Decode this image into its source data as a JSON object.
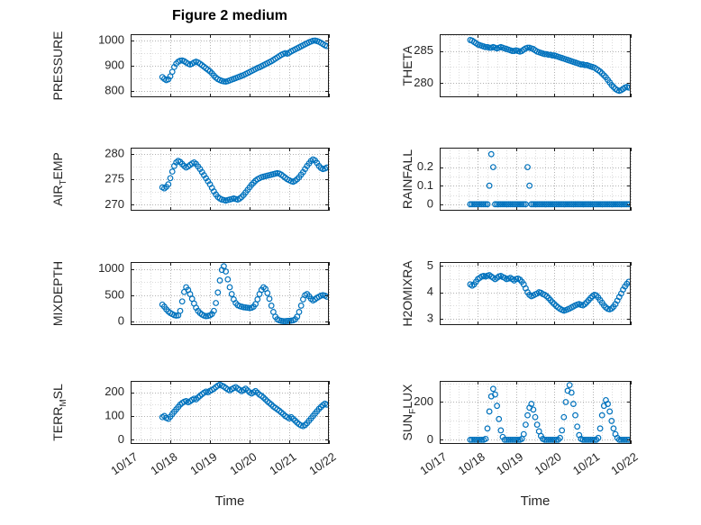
{
  "title": "Figure 2 medium",
  "xlabel": "Time",
  "chart_data": {
    "type": "scatter",
    "marker": "open-circle",
    "marker_color": "#0072BD",
    "grid": "on-dotted-with-minor",
    "xlim": [
      0,
      5
    ],
    "xticks": [
      0,
      1,
      2,
      3,
      4,
      5
    ],
    "xtick_labels": [
      "10/17",
      "10/18",
      "10/19",
      "10/20",
      "10/21",
      "10/22"
    ],
    "x": [
      0.8,
      0.85,
      0.9,
      0.95,
      1,
      1.05,
      1.1,
      1.15,
      1.2,
      1.25,
      1.3,
      1.35,
      1.4,
      1.45,
      1.5,
      1.55,
      1.6,
      1.65,
      1.7,
      1.75,
      1.8,
      1.85,
      1.9,
      1.95,
      2,
      2.05,
      2.1,
      2.15,
      2.2,
      2.25,
      2.3,
      2.35,
      2.4,
      2.45,
      2.5,
      2.55,
      2.6,
      2.65,
      2.7,
      2.75,
      2.8,
      2.85,
      2.9,
      2.95,
      3,
      3.05,
      3.1,
      3.15,
      3.2,
      3.25,
      3.3,
      3.35,
      3.4,
      3.45,
      3.5,
      3.55,
      3.6,
      3.65,
      3.7,
      3.75,
      3.8,
      3.85,
      3.9,
      3.95,
      4,
      4.05,
      4.1,
      4.15,
      4.2,
      4.25,
      4.3,
      4.35,
      4.4,
      4.45,
      4.5,
      4.55,
      4.6,
      4.65,
      4.7,
      4.75,
      4.8,
      4.85,
      4.9,
      4.95
    ],
    "panels": [
      {
        "name": "PRESSURE",
        "ylabel": {
          "pre": "PRESSURE",
          "sub": "",
          "post": ""
        },
        "ylim": [
          775,
          1025
        ],
        "yticks": [
          800,
          900,
          1000
        ],
        "y": [
          855,
          848,
          843,
          846,
          858,
          876,
          895,
          908,
          916,
          920,
          921,
          918,
          913,
          908,
          905,
          908,
          913,
          916,
          913,
          908,
          902,
          896,
          890,
          884,
          878,
          870,
          861,
          853,
          847,
          843,
          840,
          838,
          837,
          839,
          842,
          845,
          848,
          851,
          854,
          857,
          860,
          863,
          867,
          871,
          875,
          879,
          883,
          887,
          891,
          894,
          898,
          902,
          906,
          910,
          914,
          918,
          923,
          928,
          933,
          938,
          943,
          947,
          950,
          948,
          952,
          957,
          961,
          965,
          969,
          973,
          977,
          981,
          985,
          989,
          993,
          996,
          999,
          1000,
          998,
          995,
          991,
          986,
          981,
          978
        ]
      },
      {
        "name": "AIR_TEMP",
        "ylabel": {
          "pre": "AIR",
          "sub": "T",
          "post": "EMP"
        },
        "ylim": [
          268.8,
          281.2
        ],
        "yticks": [
          270,
          275,
          280
        ],
        "y": [
          273.4,
          273.2,
          273.5,
          274.0,
          275.2,
          276.5,
          277.6,
          278.3,
          278.6,
          278.4,
          278.0,
          277.6,
          277.3,
          277.5,
          277.8,
          278.1,
          278.3,
          278.0,
          277.5,
          277.0,
          276.4,
          275.8,
          275.2,
          274.6,
          274.0,
          273.3,
          272.6,
          272.0,
          271.5,
          271.2,
          271.0,
          270.9,
          270.8,
          270.9,
          271.0,
          271.1,
          271.2,
          271.1,
          271.0,
          271.2,
          271.5,
          271.9,
          272.4,
          272.9,
          273.4,
          273.9,
          274.3,
          274.7,
          275.0,
          275.2,
          275.4,
          275.5,
          275.6,
          275.7,
          275.8,
          275.9,
          276.0,
          276.1,
          276.2,
          276.1,
          275.9,
          275.6,
          275.3,
          275.0,
          274.8,
          274.6,
          274.5,
          274.7,
          275.0,
          275.4,
          275.9,
          276.4,
          277.0,
          277.6,
          278.1,
          278.6,
          278.9,
          278.7,
          278.2,
          277.6,
          277.2,
          277.0,
          277.1,
          277.3
        ]
      },
      {
        "name": "MIXDEPTH",
        "ylabel": {
          "pre": "MIXDEPTH",
          "sub": "",
          "post": ""
        },
        "ylim": [
          -70,
          1130
        ],
        "yticks": [
          0,
          500,
          1000
        ],
        "y": [
          320,
          280,
          230,
          190,
          160,
          140,
          120,
          110,
          115,
          200,
          380,
          560,
          650,
          600,
          520,
          430,
          340,
          260,
          200,
          160,
          130,
          110,
          100,
          105,
          115,
          140,
          200,
          350,
          550,
          780,
          980,
          1050,
          950,
          800,
          650,
          520,
          420,
          350,
          310,
          290,
          280,
          270,
          265,
          260,
          255,
          260,
          280,
          330,
          420,
          520,
          600,
          650,
          620,
          540,
          430,
          300,
          180,
          90,
          40,
          20,
          10,
          5,
          5,
          8,
          10,
          15,
          20,
          40,
          90,
          180,
          300,
          420,
          500,
          520,
          480,
          430,
          400,
          420,
          450,
          470,
          490,
          500,
          490,
          470
        ]
      },
      {
        "name": "TERR_MSL",
        "ylabel": {
          "pre": "TERR",
          "sub": "M",
          "post": "SL"
        },
        "ylim": [
          -18,
          248
        ],
        "yticks": [
          0,
          100,
          200
        ],
        "y": [
          95,
          100,
          92,
          88,
          97,
          108,
          118,
          128,
          138,
          148,
          155,
          160,
          163,
          158,
          162,
          168,
          173,
          170,
          178,
          185,
          192,
          198,
          203,
          200,
          206,
          210,
          215,
          222,
          228,
          232,
          228,
          224,
          218,
          212,
          208,
          213,
          218,
          222,
          216,
          210,
          205,
          210,
          215,
          208,
          200,
          195,
          200,
          205,
          198,
          190,
          185,
          178,
          170,
          162,
          155,
          148,
          140,
          134,
          128,
          122,
          115,
          108,
          100,
          95,
          90,
          95,
          88,
          80,
          72,
          65,
          60,
          57,
          62,
          70,
          80,
          90,
          100,
          110,
          120,
          130,
          138,
          146,
          152,
          148
        ]
      },
      {
        "name": "THETA",
        "ylabel": {
          "pre": "THETA",
          "sub": "",
          "post": ""
        },
        "ylim": [
          277.8,
          287.6
        ],
        "yticks": [
          280,
          285
        ],
        "y": [
          286.7,
          286.6,
          286.4,
          286.2,
          286.0,
          285.9,
          285.8,
          285.7,
          285.6,
          285.6,
          285.5,
          285.5,
          285.6,
          285.5,
          285.4,
          285.5,
          285.6,
          285.5,
          285.4,
          285.3,
          285.2,
          285.1,
          285.0,
          285.0,
          285.1,
          285.0,
          284.9,
          285.0,
          285.2,
          285.4,
          285.5,
          285.5,
          285.4,
          285.3,
          285.1,
          284.9,
          284.8,
          284.7,
          284.6,
          284.5,
          284.5,
          284.4,
          284.4,
          284.3,
          284.3,
          284.2,
          284.1,
          284.0,
          283.9,
          283.8,
          283.7,
          283.6,
          283.5,
          283.4,
          283.3,
          283.2,
          283.1,
          283.0,
          282.9,
          282.9,
          282.8,
          282.8,
          282.7,
          282.6,
          282.5,
          282.4,
          282.2,
          282.0,
          281.8,
          281.5,
          281.2,
          280.9,
          280.5,
          280.1,
          279.7,
          279.4,
          279.1,
          278.9,
          278.8,
          278.9,
          279.1,
          279.3,
          279.4,
          279.3
        ]
      },
      {
        "name": "RAINFALL",
        "ylabel": {
          "pre": "RAINFALL",
          "sub": "",
          "post": ""
        },
        "ylim": [
          -0.035,
          0.305
        ],
        "yticks": [
          0,
          0.1,
          0.2
        ],
        "y": [
          0,
          0,
          0,
          0,
          0,
          0,
          0,
          0,
          0,
          0,
          0.1,
          0.27,
          0.2,
          0,
          0,
          0,
          0,
          0,
          0,
          0,
          0,
          0,
          0,
          0,
          0,
          0,
          0,
          0,
          0,
          0,
          0.2,
          0.1,
          0,
          0,
          0,
          0,
          0,
          0,
          0,
          0,
          0,
          0,
          0,
          0,
          0,
          0,
          0,
          0,
          0,
          0,
          0,
          0,
          0,
          0,
          0,
          0,
          0,
          0,
          0,
          0,
          0,
          0,
          0,
          0,
          0,
          0,
          0,
          0,
          0,
          0,
          0,
          0,
          0,
          0,
          0,
          0,
          0,
          0,
          0,
          0,
          0,
          0,
          0,
          0
        ]
      },
      {
        "name": "H2OMIXRA",
        "ylabel": {
          "pre": "H2OMIXRA",
          "sub": "",
          "post": ""
        },
        "ylim": [
          2.75,
          5.15
        ],
        "yticks": [
          3,
          4,
          5
        ],
        "y": [
          4.3,
          4.25,
          4.3,
          4.4,
          4.5,
          4.55,
          4.6,
          4.62,
          4.6,
          4.63,
          4.65,
          4.6,
          4.55,
          4.5,
          4.55,
          4.6,
          4.62,
          4.58,
          4.55,
          4.5,
          4.52,
          4.55,
          4.5,
          4.45,
          4.5,
          4.52,
          4.48,
          4.4,
          4.3,
          4.15,
          4.0,
          3.9,
          3.85,
          3.88,
          3.92,
          3.95,
          4.0,
          3.98,
          3.93,
          3.9,
          3.85,
          3.78,
          3.7,
          3.62,
          3.55,
          3.48,
          3.42,
          3.37,
          3.33,
          3.3,
          3.32,
          3.35,
          3.38,
          3.42,
          3.46,
          3.5,
          3.53,
          3.55,
          3.52,
          3.5,
          3.55,
          3.62,
          3.7,
          3.78,
          3.85,
          3.9,
          3.88,
          3.8,
          3.7,
          3.6,
          3.5,
          3.42,
          3.37,
          3.35,
          3.38,
          3.45,
          3.55,
          3.68,
          3.82,
          3.95,
          4.1,
          4.22,
          4.32,
          4.4
        ]
      },
      {
        "name": "SUN_FLUX",
        "ylabel": {
          "pre": "SUN",
          "sub": "F",
          "post": "LUX"
        },
        "ylim": [
          -22,
          312
        ],
        "yticks": [
          0,
          200
        ],
        "y": [
          0,
          0,
          0,
          0,
          0,
          0,
          0,
          0,
          5,
          60,
          150,
          230,
          270,
          240,
          180,
          110,
          50,
          15,
          0,
          0,
          0,
          0,
          0,
          0,
          0,
          0,
          0,
          5,
          30,
          80,
          130,
          170,
          190,
          160,
          120,
          80,
          45,
          20,
          5,
          0,
          0,
          0,
          0,
          0,
          0,
          0,
          0,
          10,
          50,
          120,
          200,
          260,
          290,
          250,
          190,
          130,
          70,
          25,
          5,
          0,
          0,
          0,
          0,
          0,
          0,
          0,
          0,
          10,
          60,
          130,
          180,
          210,
          190,
          150,
          100,
          60,
          30,
          10,
          0,
          0,
          0,
          0,
          0,
          0
        ]
      }
    ]
  }
}
